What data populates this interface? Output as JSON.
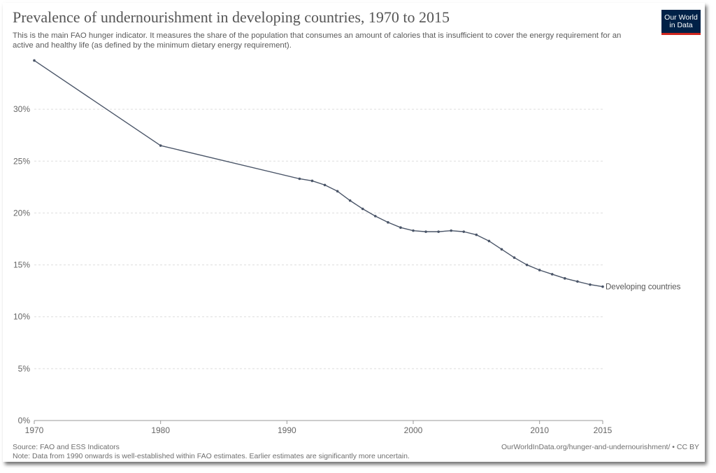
{
  "header": {
    "title": "Prevalence of undernourishment in developing countries, 1970 to 2015",
    "subtitle": "This is the main FAO hunger indicator. It measures the share of the population that consumes an amount of calories that is insufficient to cover the energy requirement for an active and healthy life (as defined by the minimum dietary energy requirement).",
    "logo": "Our World in Data"
  },
  "footer": {
    "source": "Source: FAO and ESS Indicators",
    "note": "Note: Data from 1990 onwards is well-established within FAO estimates. Earlier estimates are significantly more uncertain.",
    "url": "OurWorldInData.org/hunger-and-undernourishment/ • CC BY"
  },
  "colors": {
    "line": "#4a5568",
    "grid": "#dddddd",
    "axis": "#666666"
  },
  "chart_data": {
    "type": "line",
    "title": "Prevalence of undernourishment in developing countries, 1970 to 2015",
    "xlabel": "",
    "ylabel": "",
    "xlim": [
      1970,
      2015
    ],
    "ylim": [
      0,
      35
    ],
    "x_ticks": [
      {
        "value": 1970,
        "label": "1970"
      },
      {
        "value": 1980,
        "label": "1980"
      },
      {
        "value": 1990,
        "label": "1990"
      },
      {
        "value": 2000,
        "label": "2000"
      },
      {
        "value": 2010,
        "label": "2010"
      },
      {
        "value": 2015,
        "label": "2015"
      }
    ],
    "y_ticks": [
      {
        "value": 0,
        "label": "0%"
      },
      {
        "value": 5,
        "label": "5%"
      },
      {
        "value": 10,
        "label": "10%"
      },
      {
        "value": 15,
        "label": "15%"
      },
      {
        "value": 20,
        "label": "20%"
      },
      {
        "value": 25,
        "label": "25%"
      },
      {
        "value": 30,
        "label": "30%"
      }
    ],
    "grid": "horizontal dashed",
    "series": [
      {
        "name": "Developing countries",
        "x": [
          1970,
          1980,
          1991,
          1992,
          1993,
          1994,
          1995,
          1996,
          1997,
          1998,
          1999,
          2000,
          2001,
          2002,
          2003,
          2004,
          2005,
          2006,
          2007,
          2008,
          2009,
          2010,
          2011,
          2012,
          2013,
          2014,
          2015
        ],
        "y": [
          34.7,
          26.5,
          23.3,
          23.1,
          22.7,
          22.1,
          21.2,
          20.4,
          19.7,
          19.1,
          18.6,
          18.3,
          18.2,
          18.2,
          18.3,
          18.2,
          17.9,
          17.3,
          16.5,
          15.7,
          15.0,
          14.5,
          14.1,
          13.7,
          13.4,
          13.1,
          12.9
        ]
      }
    ]
  }
}
